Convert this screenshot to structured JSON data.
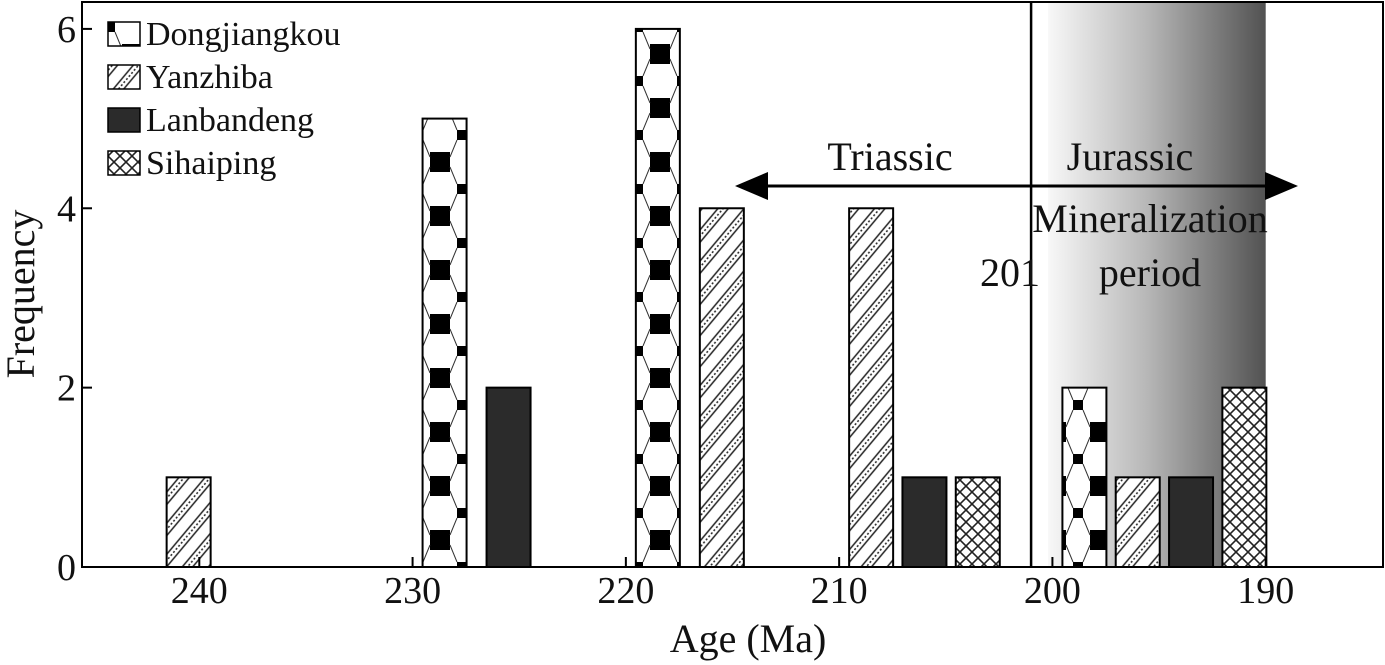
{
  "chart_data": {
    "type": "bar",
    "title": "",
    "xlabel": "Age (Ma)",
    "ylabel": "Frequency",
    "x_reversed": true,
    "xlim": [
      245.5,
      184.5
    ],
    "ylim": [
      0,
      6.3
    ],
    "x_ticks": [
      240,
      230,
      220,
      210,
      200,
      190
    ],
    "y_ticks": [
      0,
      2,
      4,
      6
    ],
    "grid": false,
    "legend_position": "top-left",
    "series": [
      {
        "name": "Dongjiangkou",
        "pattern": "octagon-checker",
        "bars": [
          {
            "x": 228.5,
            "value": 5
          },
          {
            "x": 218.5,
            "value": 6
          },
          {
            "x": 198.5,
            "value": 2
          }
        ]
      },
      {
        "name": "Yanzhiba",
        "pattern": "diagonal-hatch",
        "bars": [
          {
            "x": 240.5,
            "value": 1
          },
          {
            "x": 215.5,
            "value": 4
          },
          {
            "x": 208.5,
            "value": 4
          },
          {
            "x": 196,
            "value": 1
          }
        ]
      },
      {
        "name": "Lanbandeng",
        "pattern": "solid",
        "color": "#2b2b2b",
        "bars": [
          {
            "x": 225.5,
            "value": 2
          },
          {
            "x": 206,
            "value": 1
          },
          {
            "x": 193.5,
            "value": 1
          }
        ]
      },
      {
        "name": "Sihaiping",
        "pattern": "crosshatch",
        "bars": [
          {
            "x": 203.5,
            "value": 1
          },
          {
            "x": 191,
            "value": 2
          }
        ]
      }
    ],
    "boundary": {
      "x": 201,
      "label": "201"
    },
    "annotations": {
      "triassic": "Triassic",
      "jurassic": "Jurassic",
      "mineralization_line1": "Mineralization",
      "mineralization_line2": "period"
    },
    "mineralization_band": {
      "from": 200.2,
      "to": 190
    }
  }
}
